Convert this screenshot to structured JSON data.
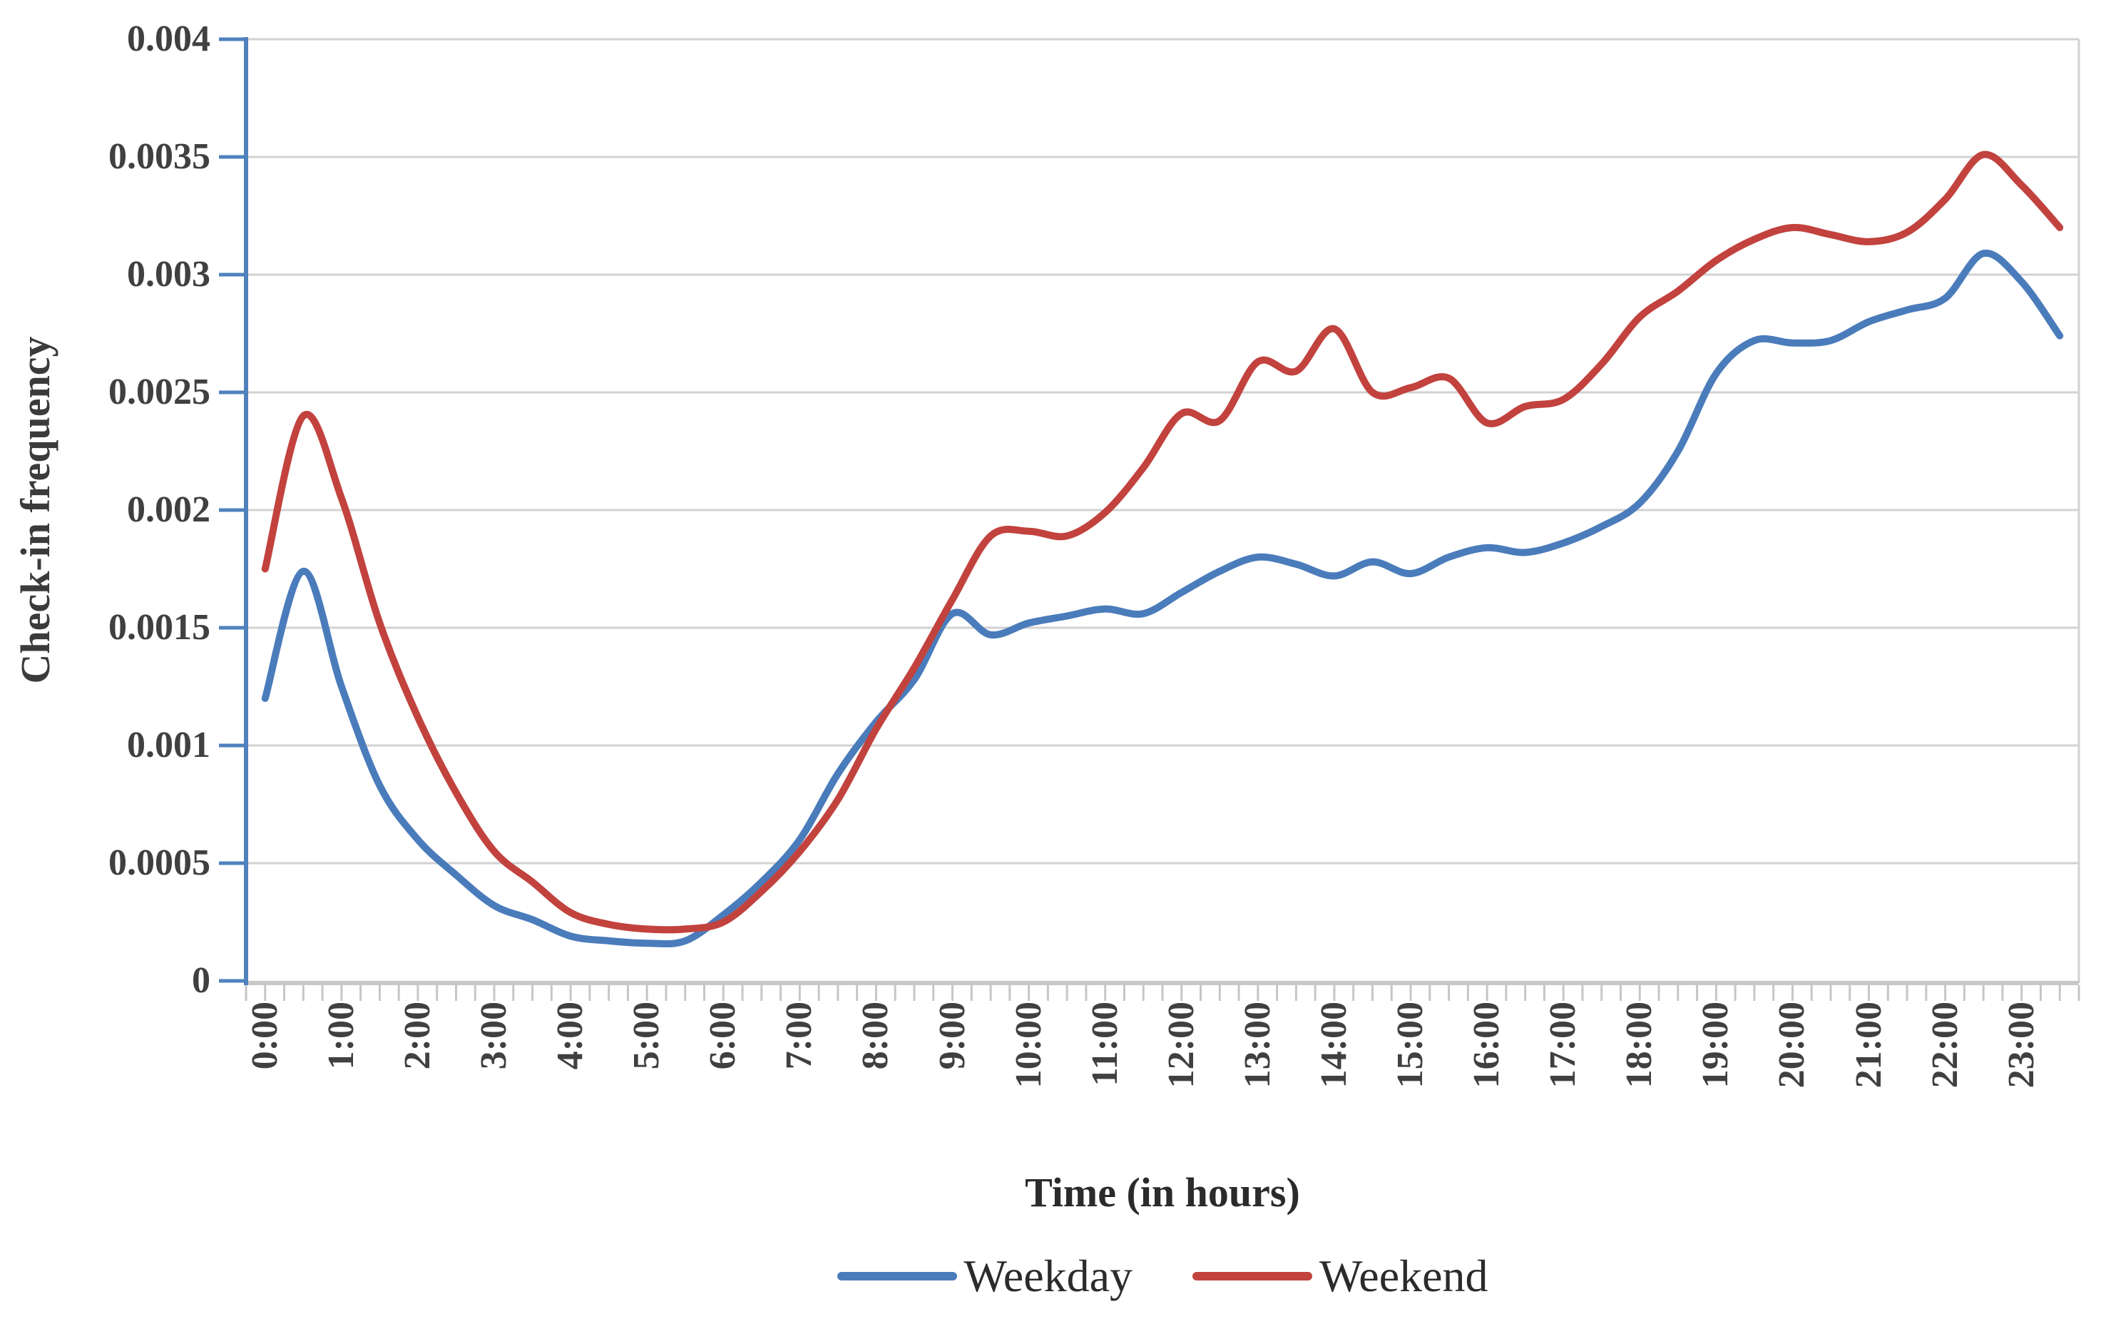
{
  "chart_data": {
    "type": "line",
    "title": "",
    "xlabel": "Time (in hours)",
    "ylabel": "Check-in frequency",
    "ylim": [
      0,
      0.004
    ],
    "grid": "horizontal",
    "legend_position": "bottom",
    "smooth": true,
    "x_tick_labels": [
      "0:00",
      "1:00",
      "2:00",
      "3:00",
      "4:00",
      "5:00",
      "6:00",
      "7:00",
      "8:00",
      "9:00",
      "10:00",
      "11:00",
      "12:00",
      "13:00",
      "14:00",
      "15:00",
      "16:00",
      "17:00",
      "18:00",
      "19:00",
      "20:00",
      "21:00",
      "22:00",
      "23:00"
    ],
    "y_ticks": [
      {
        "label": "0",
        "value": 0
      },
      {
        "label": "0.0005",
        "value": 0.0005
      },
      {
        "label": "0.001",
        "value": 0.001
      },
      {
        "label": "0.0015",
        "value": 0.0015
      },
      {
        "label": "0.002",
        "value": 0.002
      },
      {
        "label": "0.0025",
        "value": 0.0025
      },
      {
        "label": "0.003",
        "value": 0.003
      },
      {
        "label": "0.0035",
        "value": 0.0035
      },
      {
        "label": "0.004",
        "value": 0.004
      }
    ],
    "x_categories": [
      "0:00",
      "0:30",
      "1:00",
      "1:30",
      "2:00",
      "2:30",
      "3:00",
      "3:30",
      "4:00",
      "4:30",
      "5:00",
      "5:30",
      "6:00",
      "6:30",
      "7:00",
      "7:30",
      "8:00",
      "8:30",
      "9:00",
      "9:30",
      "10:00",
      "10:30",
      "11:00",
      "11:30",
      "12:00",
      "12:30",
      "13:00",
      "13:30",
      "14:00",
      "14:30",
      "15:00",
      "15:30",
      "16:00",
      "16:30",
      "17:00",
      "17:30",
      "18:00",
      "18:30",
      "19:00",
      "19:30",
      "20:00",
      "20:30",
      "21:00",
      "21:30",
      "22:00",
      "22:30",
      "23:00",
      "23:30"
    ],
    "series": [
      {
        "name": "Weekday",
        "color": "#4A7CBB",
        "values": [
          0.0012,
          0.00174,
          0.00125,
          0.00083,
          0.0006,
          0.00045,
          0.00032,
          0.00026,
          0.00019,
          0.00017,
          0.00016,
          0.00017,
          0.00028,
          0.00042,
          0.0006,
          0.00088,
          0.0011,
          0.00128,
          0.00156,
          0.00147,
          0.00152,
          0.00155,
          0.00158,
          0.00156,
          0.00165,
          0.00174,
          0.0018,
          0.00177,
          0.00172,
          0.00178,
          0.00173,
          0.0018,
          0.00184,
          0.00182,
          0.00186,
          0.00193,
          0.00203,
          0.00225,
          0.00258,
          0.00272,
          0.00271,
          0.00272,
          0.0028,
          0.00285,
          0.0029,
          0.00309,
          0.00297,
          0.00274
        ]
      },
      {
        "name": "Weekend",
        "color": "#C2423E",
        "values": [
          0.00175,
          0.0024,
          0.00205,
          0.00152,
          0.00112,
          0.0008,
          0.00055,
          0.00042,
          0.00029,
          0.00024,
          0.00022,
          0.00022,
          0.00025,
          0.00038,
          0.00055,
          0.00077,
          0.00107,
          0.00133,
          0.00162,
          0.00189,
          0.00191,
          0.00189,
          0.00199,
          0.00218,
          0.00241,
          0.00238,
          0.00263,
          0.00259,
          0.00277,
          0.0025,
          0.00252,
          0.00256,
          0.00237,
          0.00244,
          0.00247,
          0.00262,
          0.00282,
          0.00293,
          0.00306,
          0.00315,
          0.0032,
          0.00317,
          0.00314,
          0.00318,
          0.00332,
          0.00351,
          0.00338,
          0.0032
        ]
      }
    ],
    "colors": {
      "y_axis_line": "#4F81BD",
      "x_axis_line": "#C8C8C8",
      "gridline": "#D2D2D2",
      "tick_text": "#404040"
    }
  }
}
